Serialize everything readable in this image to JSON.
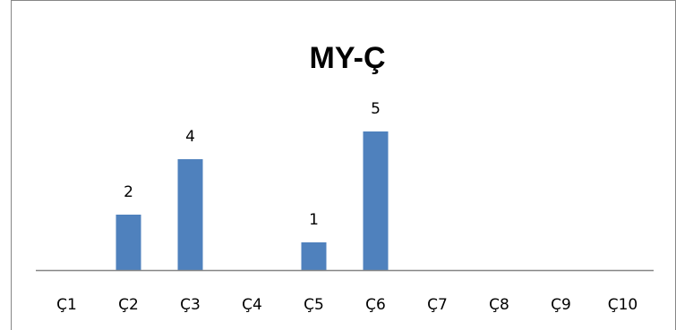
{
  "chart_data": {
    "type": "bar",
    "title": "MY-Ç",
    "xlabel": "",
    "ylabel": "",
    "categories": [
      "Ç1",
      "Ç2",
      "Ç3",
      "Ç4",
      "Ç5",
      "Ç6",
      "Ç7",
      "Ç8",
      "Ç9",
      "Ç10"
    ],
    "values": [
      0,
      2,
      4,
      0,
      1,
      5,
      0,
      0,
      0,
      0
    ],
    "data_labels": [
      "",
      "2",
      "4",
      "",
      "1",
      "5",
      "",
      "",
      "",
      ""
    ],
    "ylim": [
      0,
      5
    ],
    "grid": false,
    "legend": "none",
    "bar_color": "#4f81bd",
    "axis_color": "#868686",
    "border_color": "#868686"
  }
}
